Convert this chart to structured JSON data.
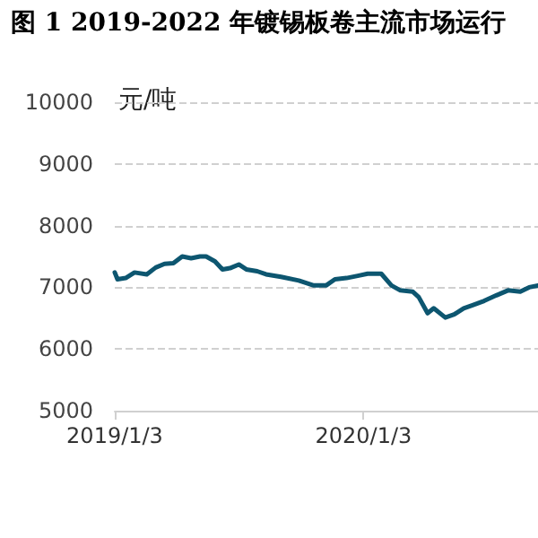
{
  "chart_data": {
    "type": "line",
    "title": "图 1 2019-2022 年镀锡板卷主流市场运行",
    "ylabel": "元/吨",
    "x": [
      "2019-01-03",
      "2019-01-07",
      "2019-01-19",
      "2019-02-01",
      "2019-02-19",
      "2019-03-04",
      "2019-03-17",
      "2019-03-30",
      "2019-04-12",
      "2019-04-25",
      "2019-05-08",
      "2019-05-17",
      "2019-05-30",
      "2019-06-10",
      "2019-06-21",
      "2019-07-04",
      "2019-07-15",
      "2019-07-31",
      "2019-08-13",
      "2019-09-04",
      "2019-09-30",
      "2019-10-22",
      "2019-11-09",
      "2019-11-22",
      "2019-12-09",
      "2019-12-27",
      "2020-01-09",
      "2020-01-29",
      "2020-02-13",
      "2020-02-26",
      "2020-03-15",
      "2020-03-24",
      "2020-04-06",
      "2020-04-15",
      "2020-05-02",
      "2020-05-15",
      "2020-05-29",
      "2020-06-11",
      "2020-06-28",
      "2020-07-16",
      "2020-08-02",
      "2020-08-20",
      "2020-09-02",
      "2020-09-15"
    ],
    "series": [
      {
        "color": "#0d5670",
        "values": [
          7240,
          7130,
          7150,
          7240,
          7210,
          7320,
          7380,
          7390,
          7500,
          7470,
          7500,
          7500,
          7420,
          7290,
          7310,
          7370,
          7290,
          7260,
          7210,
          7170,
          7110,
          7030,
          7030,
          7130,
          7150,
          7190,
          7220,
          7220,
          7030,
          6950,
          6930,
          6840,
          6580,
          6660,
          6510,
          6560,
          6660,
          6710,
          6780,
          6870,
          6950,
          6930,
          7000,
          7030
        ]
      }
    ],
    "xlim": [
      "2019-01-03",
      "2020-09-15"
    ],
    "xticks": [
      {
        "value": "2019-01-03",
        "label": "2019/1/3"
      },
      {
        "value": "2020-01-03",
        "label": "2020/1/3"
      }
    ],
    "ylim": [
      5000,
      10000
    ],
    "yticks": [
      5000,
      6000,
      7000,
      8000,
      9000,
      10000
    ],
    "grid": "y",
    "marker": "none",
    "line_style": "solid"
  }
}
